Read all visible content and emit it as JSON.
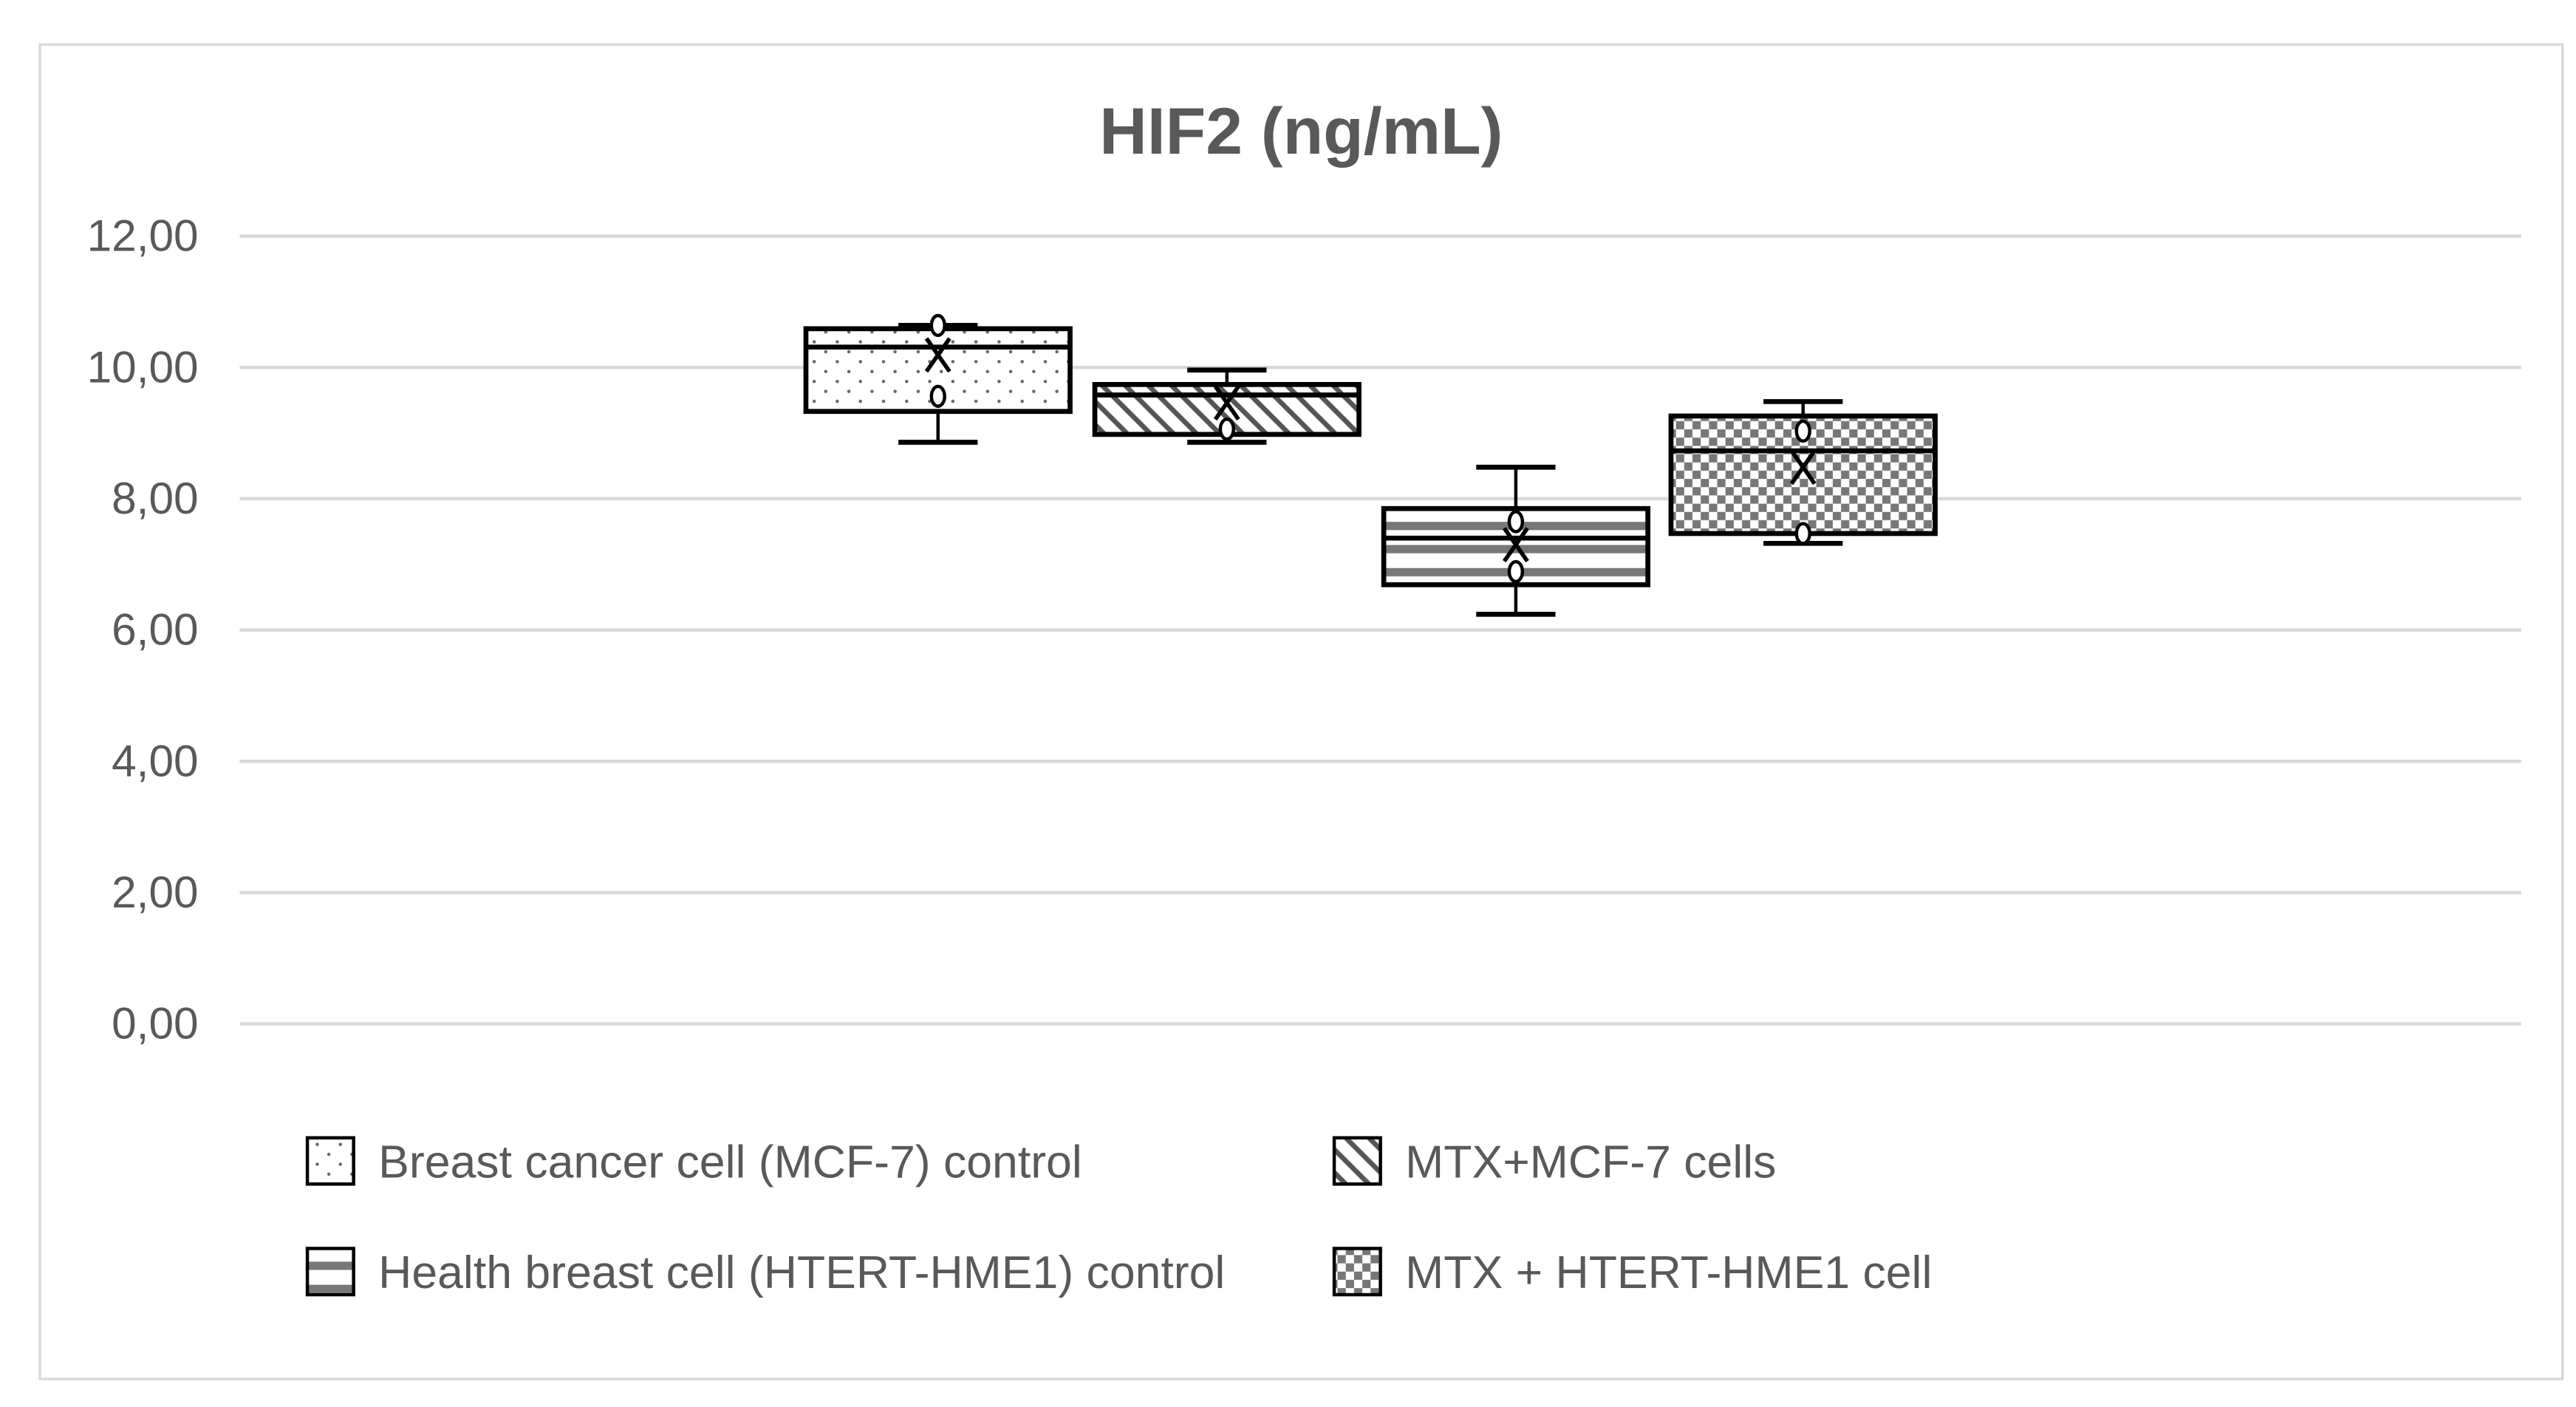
{
  "chart_data": {
    "type": "box",
    "title": "HIF2 (ng/mL)",
    "xlabel": "",
    "ylabel": "",
    "ylim": [
      0,
      12
    ],
    "yticks": [
      "0,00",
      "2,00",
      "4,00",
      "6,00",
      "8,00",
      "10,00",
      "12,00"
    ],
    "grid": true,
    "legend_position": "bottom",
    "series": [
      {
        "name": "Breast cancer cell (MCF-7) control",
        "pattern": "dots",
        "min": 8.86,
        "q1": 9.33,
        "median": 10.31,
        "q3": 10.59,
        "max": 10.64,
        "mean": 10.19,
        "points": [
          10.64,
          9.56
        ]
      },
      {
        "name": "MTX+MCF-7 cells",
        "pattern": "diagonal",
        "min": 8.86,
        "q1": 8.98,
        "median": 9.58,
        "q3": 9.74,
        "max": 9.96,
        "mean": 9.46,
        "points": [
          9.06
        ]
      },
      {
        "name": "Health breast cell (HTERT-HME1) control",
        "pattern": "horizontal",
        "min": 6.24,
        "q1": 6.69,
        "median": 7.4,
        "q3": 7.85,
        "max": 8.48,
        "mean": 7.3,
        "points": [
          7.65,
          6.89
        ]
      },
      {
        "name": "MTX + HTERT-HME1 cell",
        "pattern": "checker",
        "min": 7.32,
        "q1": 7.47,
        "median": 8.73,
        "q3": 9.26,
        "max": 9.48,
        "mean": 8.48,
        "points": [
          9.03,
          7.47
        ]
      }
    ]
  }
}
